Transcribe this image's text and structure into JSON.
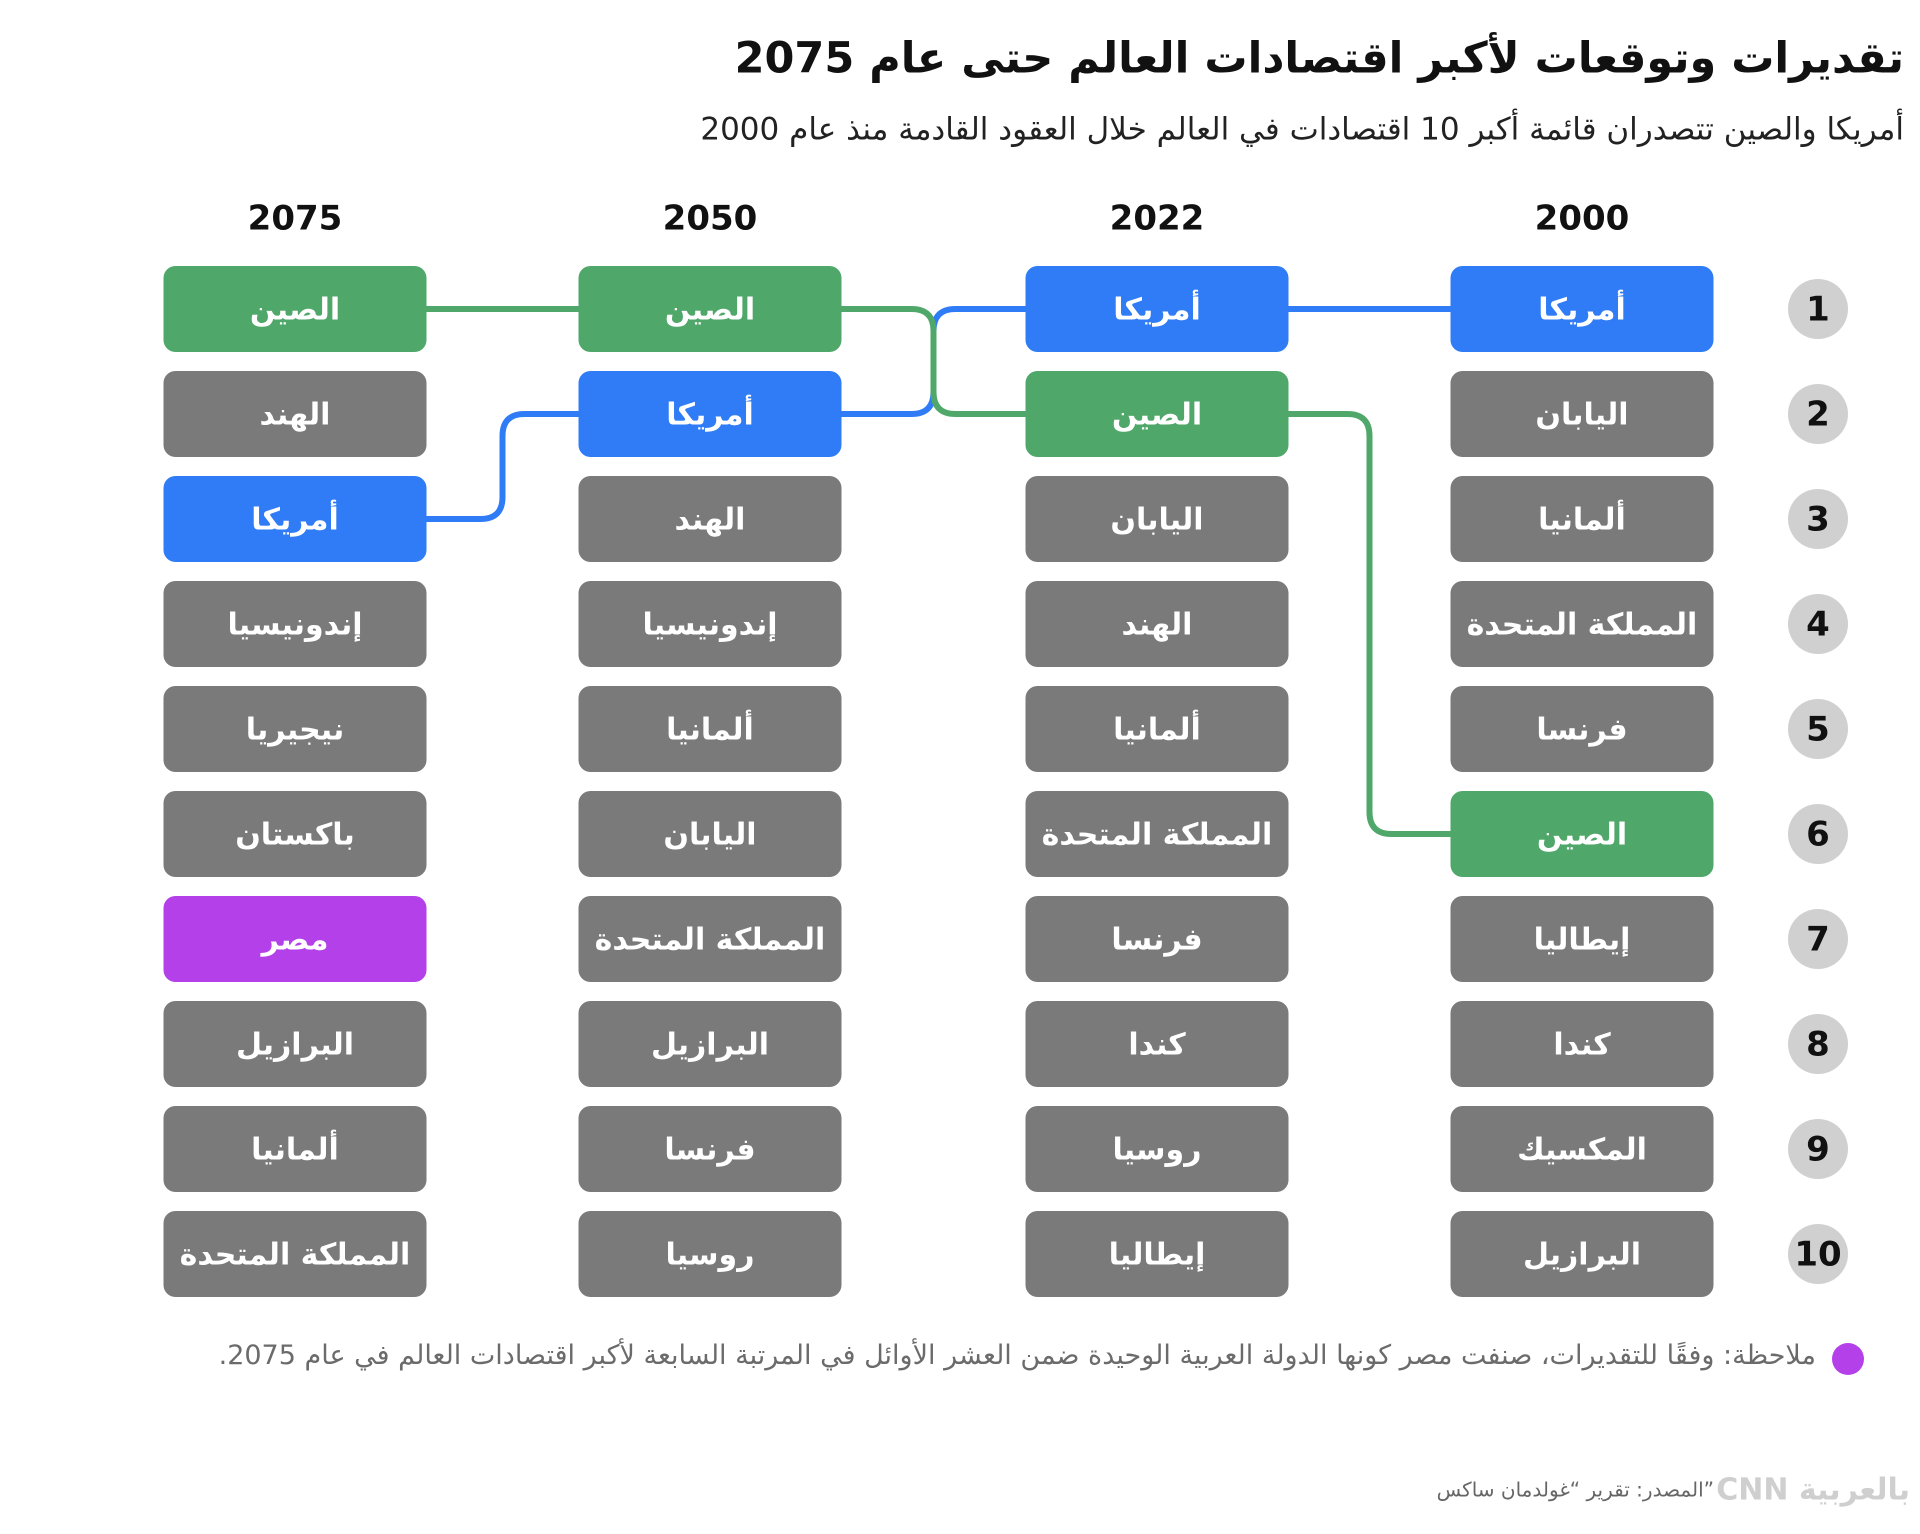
{
  "header": {
    "title": "تقديرات وتوقعات لأكبر اقتصادات العالم حتى عام 2075",
    "subtitle": "أمريكا والصين تتصدران قائمة أكبر 10 اقتصادات في العالم خلال العقود القادمة منذ عام 2000"
  },
  "ranks": [
    1,
    2,
    3,
    4,
    5,
    6,
    7,
    8,
    9,
    10
  ],
  "columns": [
    {
      "year": "2000",
      "items": [
        {
          "label": "أمريكا",
          "color": "#2f7cf6"
        },
        {
          "label": "اليابان"
        },
        {
          "label": "ألمانيا"
        },
        {
          "label": "المملكة المتحدة"
        },
        {
          "label": "فرنسا"
        },
        {
          "label": "الصين",
          "color": "#4fa86a"
        },
        {
          "label": "إيطاليا"
        },
        {
          "label": "كندا"
        },
        {
          "label": "المكسيك"
        },
        {
          "label": "البرازيل"
        }
      ]
    },
    {
      "year": "2022",
      "items": [
        {
          "label": "أمريكا",
          "color": "#2f7cf6"
        },
        {
          "label": "الصين",
          "color": "#4fa86a"
        },
        {
          "label": "اليابان"
        },
        {
          "label": "الهند"
        },
        {
          "label": "ألمانيا"
        },
        {
          "label": "المملكة المتحدة"
        },
        {
          "label": "فرنسا"
        },
        {
          "label": "كندا"
        },
        {
          "label": "روسيا"
        },
        {
          "label": "إيطاليا"
        }
      ]
    },
    {
      "year": "2050",
      "items": [
        {
          "label": "الصين",
          "color": "#4fa86a"
        },
        {
          "label": "أمريكا",
          "color": "#2f7cf6"
        },
        {
          "label": "الهند"
        },
        {
          "label": "إندونيسيا"
        },
        {
          "label": "ألمانيا"
        },
        {
          "label": "اليابان"
        },
        {
          "label": "المملكة المتحدة"
        },
        {
          "label": "البرازيل"
        },
        {
          "label": "فرنسا"
        },
        {
          "label": "روسيا"
        }
      ]
    },
    {
      "year": "2075",
      "items": [
        {
          "label": "الصين",
          "color": "#4fa86a"
        },
        {
          "label": "الهند"
        },
        {
          "label": "أمريكا",
          "color": "#2f7cf6"
        },
        {
          "label": "إندونيسيا"
        },
        {
          "label": "نيجيريا"
        },
        {
          "label": "باكستان"
        },
        {
          "label": "مصر",
          "color": "#b340e8"
        },
        {
          "label": "البرازيل"
        },
        {
          "label": "ألمانيا"
        },
        {
          "label": "المملكة المتحدة"
        }
      ]
    }
  ],
  "note": {
    "text": "ملاحظة: وفقًا للتقديرات، صنفت مصر كونها الدولة العربية الوحيدة ضمن العشر الأوائل في المرتبة السابعة لأكبر اقتصادات العالم في عام 2075.",
    "color": "#b340e8"
  },
  "source": "المصدر: تقرير “غولدمان ساكس”",
  "brand": "CNN بالعربية"
}
